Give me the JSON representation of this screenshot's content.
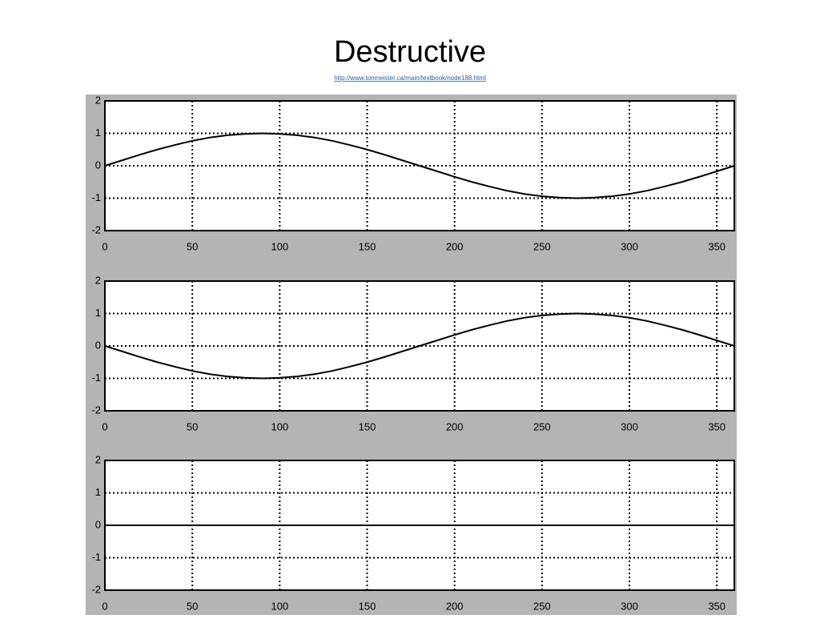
{
  "slide": {
    "title": "Destructive",
    "link": "http://www.tonmeister.ca/main/textbook/node188.html"
  },
  "chart_data": [
    {
      "type": "line",
      "color": "#000000",
      "grid": true,
      "x": [
        0,
        10,
        20,
        30,
        40,
        50,
        60,
        70,
        80,
        90,
        100,
        110,
        120,
        130,
        140,
        150,
        160,
        170,
        180,
        190,
        200,
        210,
        220,
        230,
        240,
        250,
        260,
        270,
        280,
        290,
        300,
        310,
        320,
        330,
        340,
        350,
        360
      ],
      "values": [
        0,
        0.17,
        0.34,
        0.5,
        0.64,
        0.77,
        0.87,
        0.94,
        0.98,
        1,
        0.98,
        0.94,
        0.87,
        0.77,
        0.64,
        0.5,
        0.34,
        0.17,
        0,
        -0.17,
        -0.34,
        -0.5,
        -0.64,
        -0.77,
        -0.87,
        -0.94,
        -0.98,
        -1,
        -0.98,
        -0.94,
        -0.87,
        -0.77,
        -0.64,
        -0.5,
        -0.34,
        -0.17,
        0
      ],
      "xlim": [
        0,
        360
      ],
      "xticks": [
        0,
        50,
        100,
        150,
        200,
        250,
        300,
        350
      ],
      "ylim": [
        -2,
        2
      ],
      "yticks": [
        -2,
        -1,
        0,
        1,
        2
      ]
    },
    {
      "type": "line",
      "color": "#000000",
      "grid": true,
      "x": [
        0,
        10,
        20,
        30,
        40,
        50,
        60,
        70,
        80,
        90,
        100,
        110,
        120,
        130,
        140,
        150,
        160,
        170,
        180,
        190,
        200,
        210,
        220,
        230,
        240,
        250,
        260,
        270,
        280,
        290,
        300,
        310,
        320,
        330,
        340,
        350,
        360
      ],
      "values": [
        0,
        -0.17,
        -0.34,
        -0.5,
        -0.64,
        -0.77,
        -0.87,
        -0.94,
        -0.98,
        -1,
        -0.98,
        -0.94,
        -0.87,
        -0.77,
        -0.64,
        -0.5,
        -0.34,
        -0.17,
        0,
        0.17,
        0.34,
        0.5,
        0.64,
        0.77,
        0.87,
        0.94,
        0.98,
        1,
        0.98,
        0.94,
        0.87,
        0.77,
        0.64,
        0.5,
        0.34,
        0.17,
        0
      ],
      "xlim": [
        0,
        360
      ],
      "xticks": [
        0,
        50,
        100,
        150,
        200,
        250,
        300,
        350
      ],
      "ylim": [
        -2,
        2
      ],
      "yticks": [
        -2,
        -1,
        0,
        1,
        2
      ]
    },
    {
      "type": "line",
      "color": "#000000",
      "grid": true,
      "x": [
        0,
        360
      ],
      "values": [
        0,
        0
      ],
      "xlim": [
        0,
        360
      ],
      "xticks": [
        0,
        50,
        100,
        150,
        200,
        250,
        300,
        350
      ],
      "ylim": [
        -2,
        2
      ],
      "yticks": [
        -2,
        -1,
        0,
        1,
        2
      ]
    }
  ]
}
